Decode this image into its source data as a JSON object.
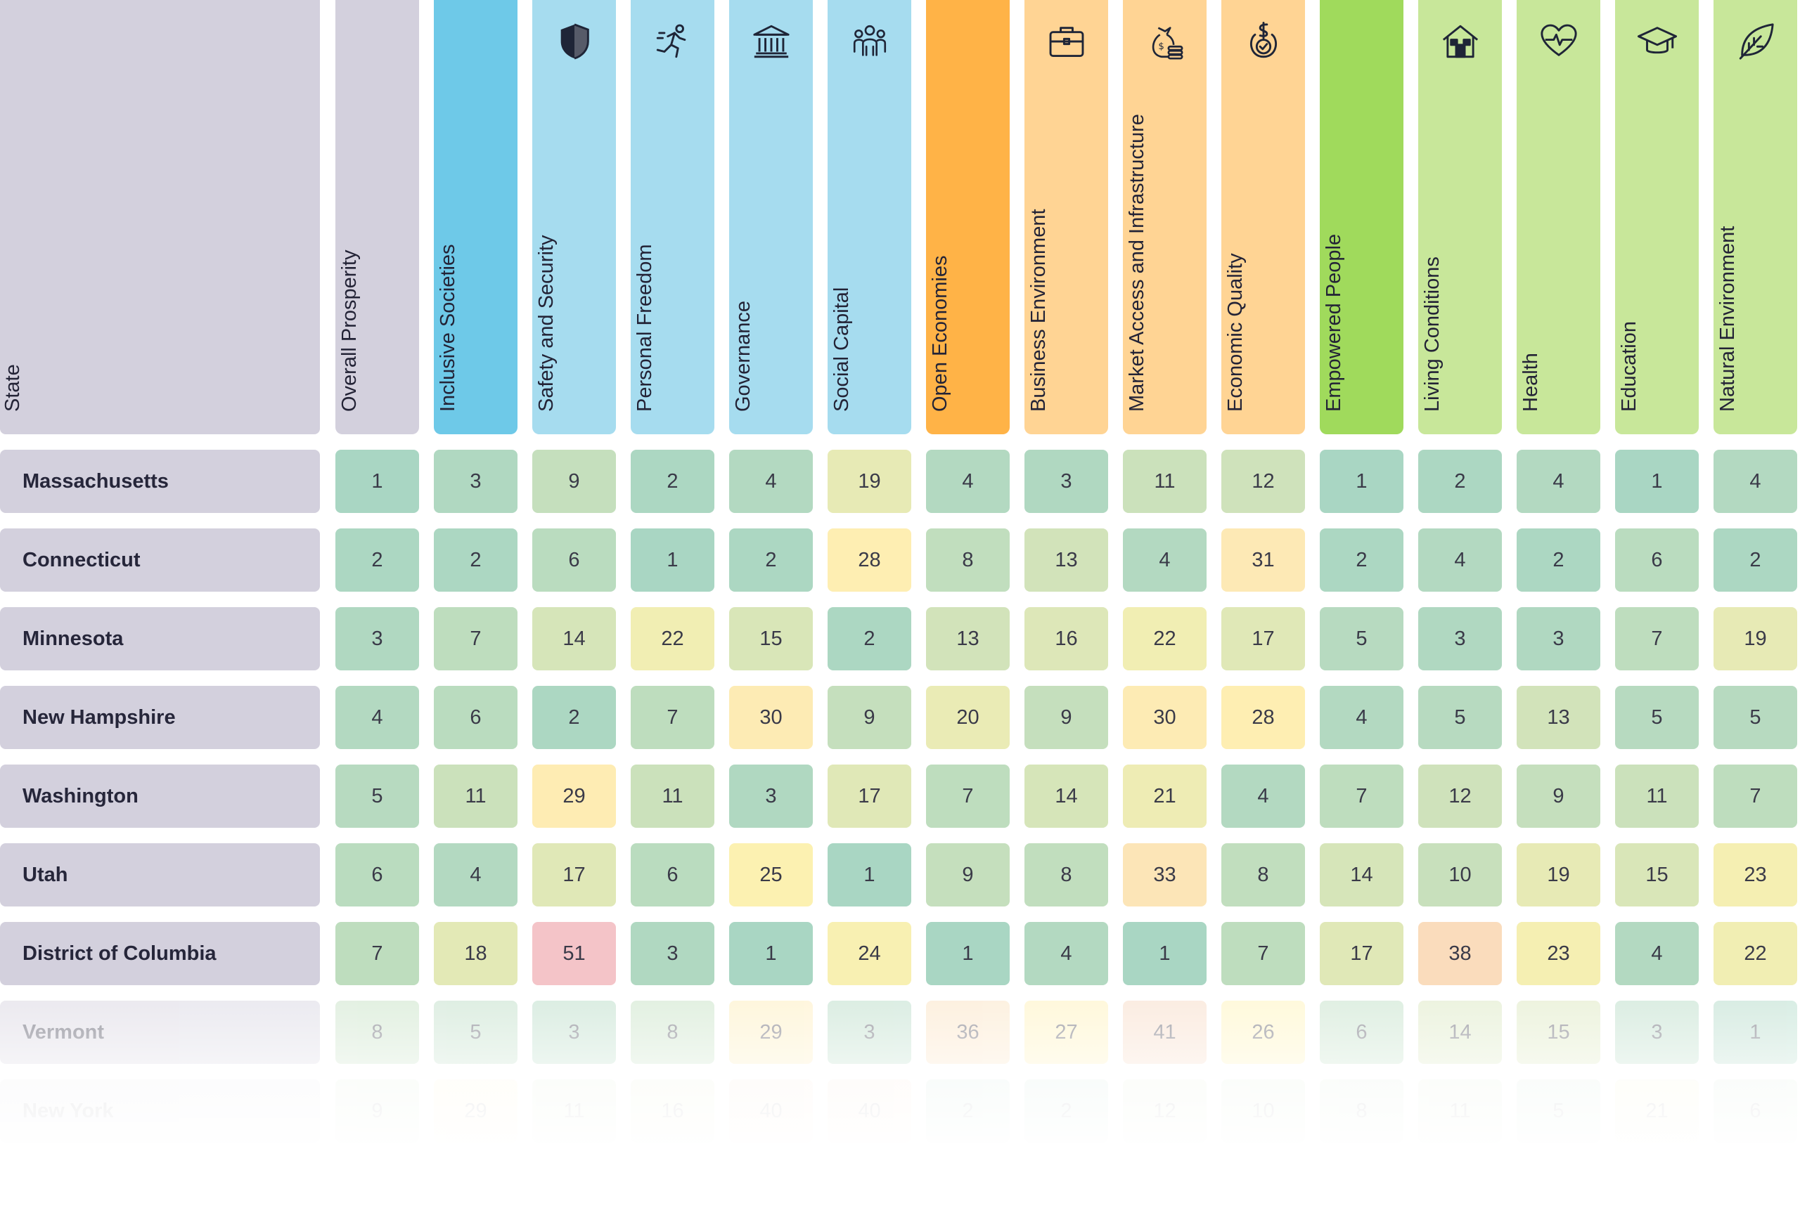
{
  "table": {
    "state_header": "State",
    "columns": [
      {
        "label": "Overall Prosperity",
        "group": "overall",
        "icon": ""
      },
      {
        "label": "Inclusive Societies",
        "group": "pillar-blue",
        "icon": ""
      },
      {
        "label": "Safety and Security",
        "group": "blue",
        "icon": "shield-icon"
      },
      {
        "label": "Personal Freedom",
        "group": "blue",
        "icon": "running-person-icon"
      },
      {
        "label": "Governance",
        "group": "blue",
        "icon": "government-building-icon"
      },
      {
        "label": "Social Capital",
        "group": "blue",
        "icon": "people-group-icon"
      },
      {
        "label": "Open Economies",
        "group": "pillar-orange",
        "icon": ""
      },
      {
        "label": "Business Environment",
        "group": "orange",
        "icon": "briefcase-icon"
      },
      {
        "label": "Market Access and Infrastructure",
        "group": "orange",
        "icon": "money-bag-coins-icon"
      },
      {
        "label": "Economic Quality",
        "group": "orange",
        "icon": "dollar-check-icon"
      },
      {
        "label": "Empowered People",
        "group": "pillar-green",
        "icon": ""
      },
      {
        "label": "Living Conditions",
        "group": "green",
        "icon": "house-icon"
      },
      {
        "label": "Health",
        "group": "green",
        "icon": "heart-pulse-icon"
      },
      {
        "label": "Education",
        "group": "green",
        "icon": "graduation-cap-icon"
      },
      {
        "label": "Natural Environment",
        "group": "green",
        "icon": "leaf-icon"
      }
    ],
    "colors": {
      "state_header": "#d3d0dd",
      "overall_header": "#d3d0dd",
      "pillar_blue": "#6ec9e8",
      "blue": "#a6dcef",
      "pillar_orange": "#ffb347",
      "orange": "#ffd494",
      "pillar_green": "#a0da5c",
      "green": "#c8e79a"
    }
  },
  "chart_data": {
    "type": "heatmap",
    "title": "",
    "columns": [
      "Overall Prosperity",
      "Inclusive Societies",
      "Safety and Security",
      "Personal Freedom",
      "Governance",
      "Social Capital",
      "Open Economies",
      "Business Environment",
      "Market Access and Infrastructure",
      "Economic Quality",
      "Empowered People",
      "Living Conditions",
      "Health",
      "Education",
      "Natural Environment"
    ],
    "rows": [
      {
        "state": "Massachusetts",
        "values": [
          1,
          3,
          9,
          2,
          4,
          19,
          4,
          3,
          11,
          12,
          1,
          2,
          4,
          1,
          4
        ]
      },
      {
        "state": "Connecticut",
        "values": [
          2,
          2,
          6,
          1,
          2,
          28,
          8,
          13,
          4,
          31,
          2,
          4,
          2,
          6,
          2
        ]
      },
      {
        "state": "Minnesota",
        "values": [
          3,
          7,
          14,
          22,
          15,
          2,
          13,
          16,
          22,
          17,
          5,
          3,
          3,
          7,
          19
        ]
      },
      {
        "state": "New Hampshire",
        "values": [
          4,
          6,
          2,
          7,
          30,
          9,
          20,
          9,
          30,
          28,
          4,
          5,
          13,
          5,
          5
        ]
      },
      {
        "state": "Washington",
        "values": [
          5,
          11,
          29,
          11,
          3,
          17,
          7,
          14,
          21,
          4,
          7,
          12,
          9,
          11,
          7
        ]
      },
      {
        "state": "Utah",
        "values": [
          6,
          4,
          17,
          6,
          25,
          1,
          9,
          8,
          33,
          8,
          14,
          10,
          19,
          15,
          23
        ]
      },
      {
        "state": "District of Columbia",
        "values": [
          7,
          18,
          51,
          3,
          1,
          24,
          1,
          4,
          1,
          7,
          17,
          38,
          23,
          4,
          22
        ]
      },
      {
        "state": "Vermont",
        "values": [
          8,
          5,
          3,
          8,
          29,
          3,
          36,
          27,
          41,
          26,
          6,
          14,
          15,
          3,
          1
        ]
      },
      {
        "state": "New York",
        "values": [
          9,
          29,
          11,
          16,
          40,
          40,
          2,
          2,
          12,
          10,
          8,
          11,
          5,
          21,
          6
        ]
      }
    ],
    "color_scale": {
      "low": "#b6ddc8",
      "mid": "#fff2b0",
      "high": "#f4c4c8"
    }
  }
}
